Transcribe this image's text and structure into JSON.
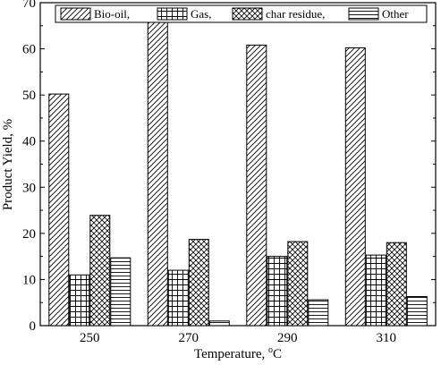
{
  "chart_data": {
    "type": "bar",
    "title": "",
    "xlabel": "Temperature, °C",
    "xlabel_base": "Temperature, ",
    "xlabel_sup": "o",
    "xlabel_unit": "C",
    "ylabel": "Product Yield, %",
    "ylim": [
      0,
      70
    ],
    "yticks": [
      "0",
      "10",
      "20",
      "30",
      "40",
      "50",
      "60",
      "70"
    ],
    "categories": [
      "250",
      "270",
      "290",
      "310"
    ],
    "series": [
      {
        "name": "Bio-oil,",
        "pattern": "diagonal",
        "values": [
          50.2,
          68.2,
          60.8,
          60.2
        ]
      },
      {
        "name": "Gas,",
        "pattern": "grid",
        "values": [
          11.0,
          12.0,
          15.0,
          15.3
        ]
      },
      {
        "name": "char residue,",
        "pattern": "crosshatch",
        "values": [
          23.9,
          18.7,
          18.2,
          18.0
        ]
      },
      {
        "name": "Other",
        "pattern": "horizontal",
        "values": [
          14.7,
          1.0,
          5.6,
          6.3
        ]
      }
    ],
    "legend_position": "top",
    "grid": false,
    "colors": {
      "stroke": "#000000",
      "fill": "#ffffff"
    }
  }
}
